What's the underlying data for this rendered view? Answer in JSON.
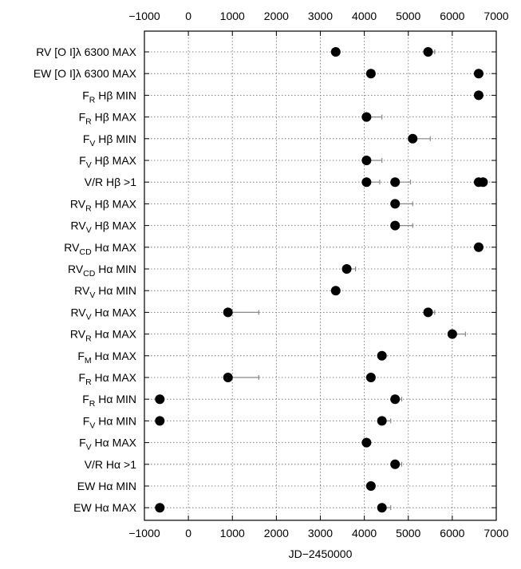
{
  "chart_data": {
    "type": "scatter",
    "xlabel": "JD−2450000",
    "xlim": [
      -1000,
      7000
    ],
    "xticks": [
      -1000,
      0,
      1000,
      2000,
      3000,
      4000,
      5000,
      6000,
      7000
    ],
    "xtick_labels": [
      "−1000",
      "0",
      "1000",
      "2000",
      "3000",
      "4000",
      "5000",
      "6000",
      "7000"
    ],
    "grid": true,
    "rows": [
      {
        "parts": [
          {
            "t": "RV [O I]λ 6300 MAX"
          }
        ],
        "points": [
          {
            "x": 3350
          },
          {
            "x": 5450,
            "err": 150
          }
        ]
      },
      {
        "parts": [
          {
            "t": "EW [O I]λ 6300 MAX"
          }
        ],
        "points": [
          {
            "x": 4150
          },
          {
            "x": 6600
          }
        ]
      },
      {
        "parts": [
          {
            "t": "F"
          },
          {
            "sub": "R"
          },
          {
            "t": " Hβ MIN"
          }
        ],
        "points": [
          {
            "x": 6600
          }
        ]
      },
      {
        "parts": [
          {
            "t": "F"
          },
          {
            "sub": "R"
          },
          {
            "t": " Hβ MAX"
          }
        ],
        "points": [
          {
            "x": 4050,
            "err": 350
          }
        ]
      },
      {
        "parts": [
          {
            "t": "F"
          },
          {
            "sub": "V"
          },
          {
            "t": " Hβ MIN"
          }
        ],
        "points": [
          {
            "x": 5100,
            "err": 400
          }
        ]
      },
      {
        "parts": [
          {
            "t": "F"
          },
          {
            "sub": "V"
          },
          {
            "t": " Hβ MAX"
          }
        ],
        "points": [
          {
            "x": 4050,
            "err": 350
          }
        ]
      },
      {
        "parts": [
          {
            "t": "V/R Hβ >1"
          }
        ],
        "points": [
          {
            "x": 4050,
            "err": 300
          },
          {
            "x": 4700,
            "err": 350
          },
          {
            "x": 6600
          },
          {
            "x": 6700
          }
        ]
      },
      {
        "parts": [
          {
            "t": "RV"
          },
          {
            "sub": "R"
          },
          {
            "t": " Hβ MAX"
          }
        ],
        "points": [
          {
            "x": 4700,
            "err": 400
          }
        ]
      },
      {
        "parts": [
          {
            "t": "RV"
          },
          {
            "sub": "V"
          },
          {
            "t": " Hβ MAX"
          }
        ],
        "points": [
          {
            "x": 4700,
            "err": 400
          }
        ]
      },
      {
        "parts": [
          {
            "t": "RV"
          },
          {
            "sub": "CD"
          },
          {
            "t": " Hα MAX"
          }
        ],
        "points": [
          {
            "x": 6600
          }
        ]
      },
      {
        "parts": [
          {
            "t": "RV"
          },
          {
            "sub": "CD"
          },
          {
            "t": " Hα MIN"
          }
        ],
        "points": [
          {
            "x": 3600,
            "err": 200
          }
        ]
      },
      {
        "parts": [
          {
            "t": "RV"
          },
          {
            "sub": "V"
          },
          {
            "t": " Hα MIN"
          }
        ],
        "points": [
          {
            "x": 3350
          }
        ]
      },
      {
        "parts": [
          {
            "t": "RV"
          },
          {
            "sub": "V"
          },
          {
            "t": " Hα MAX"
          }
        ],
        "points": [
          {
            "x": 900,
            "err": 700
          },
          {
            "x": 5450,
            "err": 150
          }
        ]
      },
      {
        "parts": [
          {
            "t": "RV"
          },
          {
            "sub": "R"
          },
          {
            "t": " Hα MAX"
          }
        ],
        "points": [
          {
            "x": 6000,
            "err": 300
          }
        ]
      },
      {
        "parts": [
          {
            "t": "F"
          },
          {
            "sub": "M"
          },
          {
            "t": " Hα MAX"
          }
        ],
        "points": [
          {
            "x": 4400
          }
        ]
      },
      {
        "parts": [
          {
            "t": "F"
          },
          {
            "sub": "R"
          },
          {
            "t": " Hα MAX"
          }
        ],
        "points": [
          {
            "x": 900,
            "err": 700
          },
          {
            "x": 4150
          }
        ]
      },
      {
        "parts": [
          {
            "t": "F"
          },
          {
            "sub": "R"
          },
          {
            "t": " Hα MIN"
          }
        ],
        "points": [
          {
            "x": -650
          },
          {
            "x": 4700,
            "err": 150
          }
        ]
      },
      {
        "parts": [
          {
            "t": "F"
          },
          {
            "sub": "V"
          },
          {
            "t": " Hα MIN"
          }
        ],
        "points": [
          {
            "x": -650
          },
          {
            "x": 4400,
            "err": 200
          }
        ]
      },
      {
        "parts": [
          {
            "t": "F"
          },
          {
            "sub": "V"
          },
          {
            "t": " Hα MAX"
          }
        ],
        "points": [
          {
            "x": 4050
          }
        ]
      },
      {
        "parts": [
          {
            "t": "V/R Hα >1"
          }
        ],
        "points": [
          {
            "x": 4700,
            "err": 150
          }
        ]
      },
      {
        "parts": [
          {
            "t": "EW Hα MIN"
          }
        ],
        "points": [
          {
            "x": 4150
          }
        ]
      },
      {
        "parts": [
          {
            "t": "EW Hα MAX"
          }
        ],
        "points": [
          {
            "x": -650
          },
          {
            "x": 4400,
            "err": 200
          }
        ]
      }
    ]
  }
}
